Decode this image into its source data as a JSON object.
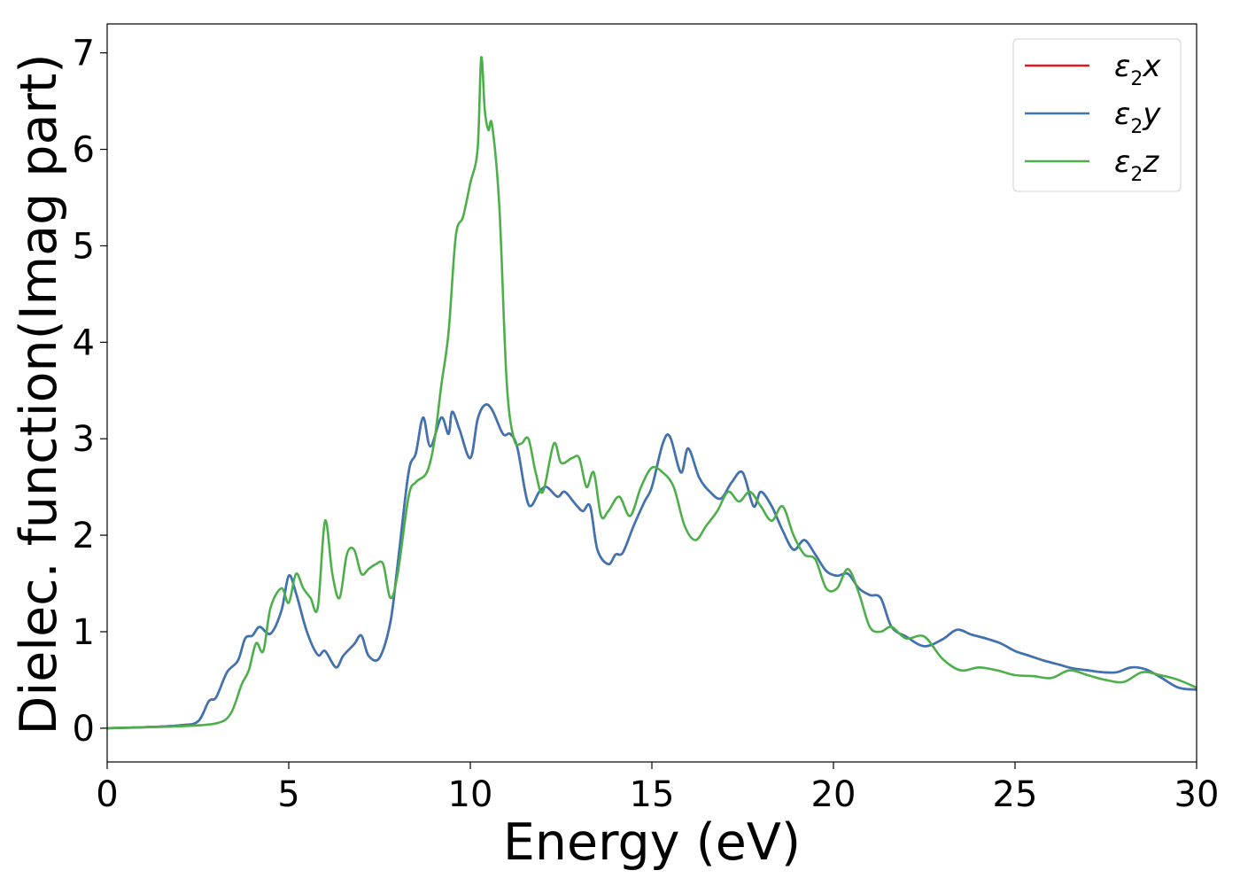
{
  "chart_data": {
    "type": "line",
    "title": "",
    "xlabel": "Energy (eV)",
    "ylabel": "Dielec. function(Imag part)",
    "xlim": [
      0,
      30
    ],
    "ylim": [
      -0.35,
      7.3
    ],
    "xticks": [
      0,
      5,
      10,
      15,
      20,
      25,
      30
    ],
    "yticks": [
      0,
      1,
      2,
      3,
      4,
      5,
      6,
      7
    ],
    "grid": false,
    "legend_placement": "top-right",
    "series": [
      {
        "name": "ε₂x",
        "legend_base": "ε",
        "legend_sub": "2",
        "legend_var": "x",
        "color": "#e41a1c",
        "x": [
          0,
          1,
          2,
          2.5,
          2.8,
          3.0,
          3.3,
          3.6,
          3.8,
          4.0,
          4.2,
          4.5,
          4.8,
          5.0,
          5.2,
          5.5,
          5.8,
          6.0,
          6.3,
          6.5,
          6.8,
          7.0,
          7.2,
          7.5,
          7.8,
          8.0,
          8.3,
          8.5,
          8.7,
          8.9,
          9.2,
          9.4,
          9.5,
          9.7,
          10.0,
          10.2,
          10.4,
          10.6,
          10.9,
          11.1,
          11.3,
          11.6,
          11.9,
          12.1,
          12.4,
          12.6,
          12.9,
          13.1,
          13.3,
          13.5,
          13.8,
          14.0,
          14.2,
          14.5,
          14.8,
          15.0,
          15.3,
          15.5,
          15.8,
          16.0,
          16.3,
          16.6,
          16.9,
          17.2,
          17.5,
          17.8,
          18.0,
          18.3,
          18.6,
          18.9,
          19.2,
          19.5,
          19.8,
          20.1,
          20.4,
          20.7,
          21.0,
          21.3,
          21.6,
          22.0,
          22.5,
          23.0,
          23.4,
          23.8,
          24.2,
          24.6,
          25.0,
          25.4,
          25.8,
          26.2,
          26.6,
          27.0,
          27.4,
          27.8,
          28.2,
          28.6,
          29.0,
          29.5,
          30.0
        ],
        "values": [
          0.0,
          0.01,
          0.03,
          0.07,
          0.28,
          0.32,
          0.58,
          0.7,
          0.93,
          0.96,
          1.05,
          0.98,
          1.22,
          1.58,
          1.4,
          1.0,
          0.76,
          0.8,
          0.63,
          0.75,
          0.87,
          0.96,
          0.75,
          0.73,
          1.1,
          1.7,
          2.65,
          2.85,
          3.22,
          2.92,
          3.22,
          3.05,
          3.28,
          3.1,
          2.8,
          3.2,
          3.35,
          3.3,
          3.05,
          3.05,
          2.9,
          2.32,
          2.45,
          2.5,
          2.4,
          2.45,
          2.32,
          2.25,
          2.3,
          1.85,
          1.7,
          1.8,
          1.82,
          2.1,
          2.35,
          2.5,
          2.95,
          3.02,
          2.65,
          2.9,
          2.6,
          2.45,
          2.38,
          2.55,
          2.65,
          2.3,
          2.45,
          2.3,
          2.05,
          1.85,
          1.95,
          1.8,
          1.63,
          1.58,
          1.6,
          1.45,
          1.38,
          1.35,
          1.05,
          0.95,
          0.85,
          0.92,
          1.02,
          0.97,
          0.93,
          0.88,
          0.8,
          0.75,
          0.7,
          0.66,
          0.62,
          0.6,
          0.58,
          0.58,
          0.63,
          0.61,
          0.53,
          0.42,
          0.4
        ]
      },
      {
        "name": "ε₂y",
        "legend_base": "ε",
        "legend_sub": "2",
        "legend_var": "y",
        "color": "#3a76b5",
        "x": [
          0,
          1,
          2,
          2.5,
          2.8,
          3.0,
          3.3,
          3.6,
          3.8,
          4.0,
          4.2,
          4.5,
          4.8,
          5.0,
          5.2,
          5.5,
          5.8,
          6.0,
          6.3,
          6.5,
          6.8,
          7.0,
          7.2,
          7.5,
          7.8,
          8.0,
          8.3,
          8.5,
          8.7,
          8.9,
          9.2,
          9.4,
          9.5,
          9.7,
          10.0,
          10.2,
          10.4,
          10.6,
          10.9,
          11.1,
          11.3,
          11.6,
          11.9,
          12.1,
          12.4,
          12.6,
          12.9,
          13.1,
          13.3,
          13.5,
          13.8,
          14.0,
          14.2,
          14.5,
          14.8,
          15.0,
          15.3,
          15.5,
          15.8,
          16.0,
          16.3,
          16.6,
          16.9,
          17.2,
          17.5,
          17.8,
          18.0,
          18.3,
          18.6,
          18.9,
          19.2,
          19.5,
          19.8,
          20.1,
          20.4,
          20.7,
          21.0,
          21.3,
          21.6,
          22.0,
          22.5,
          23.0,
          23.4,
          23.8,
          24.2,
          24.6,
          25.0,
          25.4,
          25.8,
          26.2,
          26.6,
          27.0,
          27.4,
          27.8,
          28.2,
          28.6,
          29.0,
          29.5,
          30.0
        ],
        "values": [
          0.0,
          0.01,
          0.03,
          0.07,
          0.28,
          0.32,
          0.58,
          0.7,
          0.93,
          0.96,
          1.05,
          0.98,
          1.22,
          1.58,
          1.4,
          1.0,
          0.76,
          0.8,
          0.63,
          0.75,
          0.87,
          0.96,
          0.75,
          0.73,
          1.1,
          1.7,
          2.65,
          2.85,
          3.22,
          2.92,
          3.22,
          3.05,
          3.28,
          3.1,
          2.8,
          3.2,
          3.35,
          3.3,
          3.05,
          3.05,
          2.9,
          2.32,
          2.45,
          2.5,
          2.4,
          2.45,
          2.32,
          2.25,
          2.3,
          1.85,
          1.7,
          1.8,
          1.82,
          2.1,
          2.35,
          2.5,
          2.95,
          3.02,
          2.65,
          2.9,
          2.6,
          2.45,
          2.38,
          2.55,
          2.65,
          2.3,
          2.45,
          2.3,
          2.05,
          1.85,
          1.95,
          1.8,
          1.63,
          1.58,
          1.6,
          1.45,
          1.38,
          1.35,
          1.05,
          0.95,
          0.85,
          0.92,
          1.02,
          0.97,
          0.93,
          0.88,
          0.8,
          0.75,
          0.7,
          0.66,
          0.62,
          0.6,
          0.58,
          0.58,
          0.63,
          0.61,
          0.53,
          0.42,
          0.4
        ]
      },
      {
        "name": "ε₂z",
        "legend_base": "ε",
        "legend_sub": "2",
        "legend_var": "z",
        "color": "#4daf4a",
        "x": [
          0,
          1,
          2,
          3.0,
          3.4,
          3.7,
          3.9,
          4.1,
          4.3,
          4.5,
          4.8,
          5.0,
          5.2,
          5.4,
          5.6,
          5.8,
          6.0,
          6.2,
          6.4,
          6.6,
          6.8,
          7.0,
          7.2,
          7.4,
          7.6,
          7.8,
          8.0,
          8.3,
          8.5,
          8.8,
          9.0,
          9.2,
          9.4,
          9.6,
          9.8,
          10.0,
          10.2,
          10.3,
          10.4,
          10.5,
          10.6,
          10.8,
          11.0,
          11.2,
          11.4,
          11.6,
          11.8,
          12.0,
          12.3,
          12.5,
          12.8,
          13.0,
          13.2,
          13.4,
          13.6,
          13.8,
          14.1,
          14.4,
          14.7,
          15.0,
          15.3,
          15.6,
          15.9,
          16.2,
          16.5,
          16.8,
          17.1,
          17.4,
          17.7,
          18.0,
          18.3,
          18.6,
          18.9,
          19.2,
          19.5,
          19.8,
          20.1,
          20.4,
          20.7,
          21.0,
          21.3,
          21.6,
          22.0,
          22.5,
          23.0,
          23.5,
          24.0,
          24.5,
          25.0,
          25.5,
          26.0,
          26.5,
          27.0,
          27.5,
          28.0,
          28.5,
          29.0,
          29.5,
          30.0
        ],
        "values": [
          0.0,
          0.01,
          0.02,
          0.05,
          0.15,
          0.45,
          0.6,
          0.88,
          0.8,
          1.25,
          1.45,
          1.3,
          1.6,
          1.45,
          1.35,
          1.25,
          2.15,
          1.6,
          1.35,
          1.8,
          1.85,
          1.6,
          1.65,
          1.7,
          1.7,
          1.35,
          1.6,
          2.4,
          2.55,
          2.65,
          2.95,
          3.55,
          4.1,
          5.1,
          5.3,
          5.65,
          6.0,
          6.95,
          6.4,
          6.2,
          6.25,
          5.4,
          3.6,
          3.0,
          2.95,
          3.0,
          2.65,
          2.45,
          2.95,
          2.75,
          2.8,
          2.8,
          2.5,
          2.65,
          2.2,
          2.25,
          2.4,
          2.2,
          2.5,
          2.7,
          2.65,
          2.5,
          2.1,
          1.95,
          2.1,
          2.25,
          2.45,
          2.35,
          2.45,
          2.3,
          2.15,
          2.3,
          2.0,
          1.8,
          1.75,
          1.45,
          1.45,
          1.65,
          1.4,
          1.05,
          1.0,
          1.05,
          0.93,
          0.95,
          0.72,
          0.6,
          0.63,
          0.6,
          0.55,
          0.54,
          0.52,
          0.6,
          0.55,
          0.5,
          0.48,
          0.58,
          0.55,
          0.5,
          0.42
        ]
      }
    ]
  }
}
